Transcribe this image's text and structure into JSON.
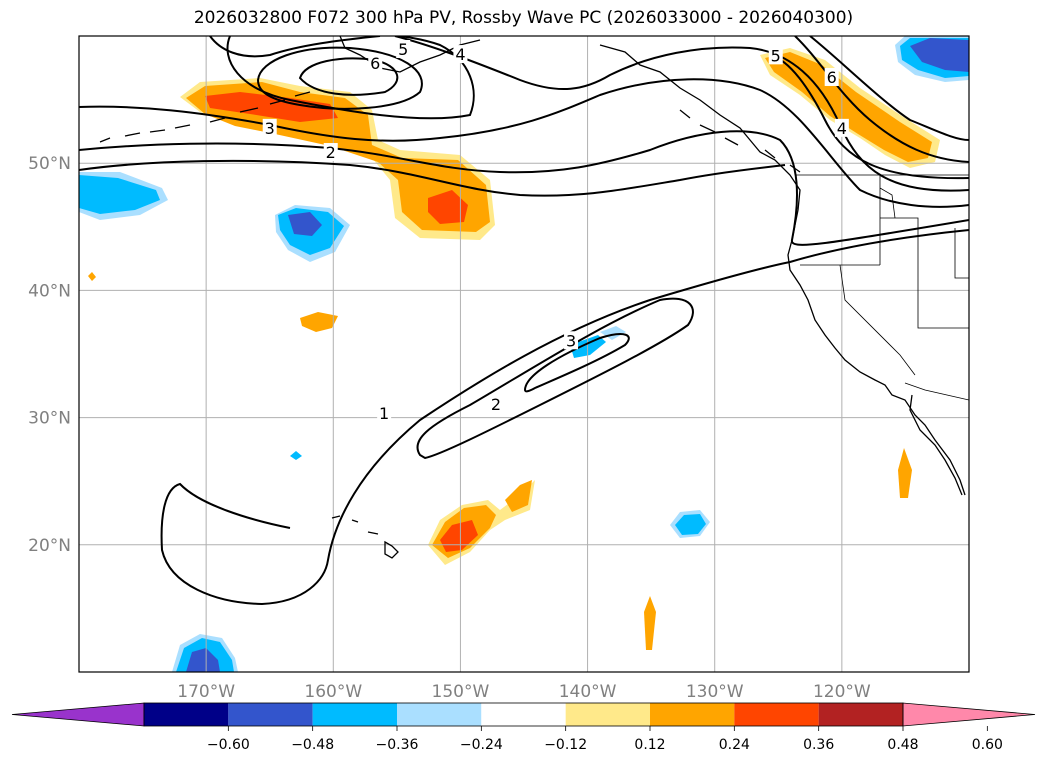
{
  "title": "2026032800 F072 300 hPa PV, Rossby Wave PC (2026033000 - 2026040300)",
  "map": {
    "lon_range": [
      -180,
      -110
    ],
    "lat_range": [
      10,
      60
    ],
    "latitude_labels": [
      {
        "lat": 50,
        "text": "50°N"
      },
      {
        "lat": 40,
        "text": "40°N"
      },
      {
        "lat": 30,
        "text": "30°N"
      },
      {
        "lat": 20,
        "text": "20°N"
      }
    ],
    "longitude_labels": [
      {
        "lon": -170,
        "text": "170°W"
      },
      {
        "lon": -160,
        "text": "160°W"
      },
      {
        "lon": -150,
        "text": "150°W"
      },
      {
        "lon": -140,
        "text": "140°W"
      },
      {
        "lon": -130,
        "text": "130°W"
      },
      {
        "lon": -120,
        "text": "120°W"
      }
    ],
    "contour_labels": [
      {
        "text": "1",
        "lon": -156.0,
        "lat": 30.3
      },
      {
        "text": "2",
        "lon": -147.2,
        "lat": 31.0
      },
      {
        "text": "3",
        "lon": -141.3,
        "lat": 36.0
      },
      {
        "text": "2",
        "lon": -160.2,
        "lat": 50.8
      },
      {
        "text": "3",
        "lon": -165.0,
        "lat": 52.7
      },
      {
        "text": "5",
        "lon": -154.5,
        "lat": 58.9
      },
      {
        "text": "4",
        "lon": -150.0,
        "lat": 58.5
      },
      {
        "text": "6",
        "lon": -156.7,
        "lat": 57.8
      },
      {
        "text": "5",
        "lon": -125.2,
        "lat": 58.4
      },
      {
        "text": "6",
        "lon": -120.8,
        "lat": 56.7
      },
      {
        "text": "4",
        "lon": -120.0,
        "lat": 52.7
      }
    ]
  },
  "colorbar": {
    "colors": [
      "#9933cc",
      "#000088",
      "#3355cc",
      "#00bbff",
      "#aadfff",
      "#ffffff",
      "#ffe98a",
      "#ffa500",
      "#ff4500",
      "#b22222",
      "#ff88aa"
    ],
    "tick_labels": [
      "−0.60",
      "−0.48",
      "−0.36",
      "−0.24",
      "−0.12",
      "0.12",
      "0.24",
      "0.36",
      "0.48",
      "0.60"
    ]
  },
  "colors": {
    "grid": "#b0b0b0",
    "contour": "#000000",
    "coast": "#000000"
  }
}
